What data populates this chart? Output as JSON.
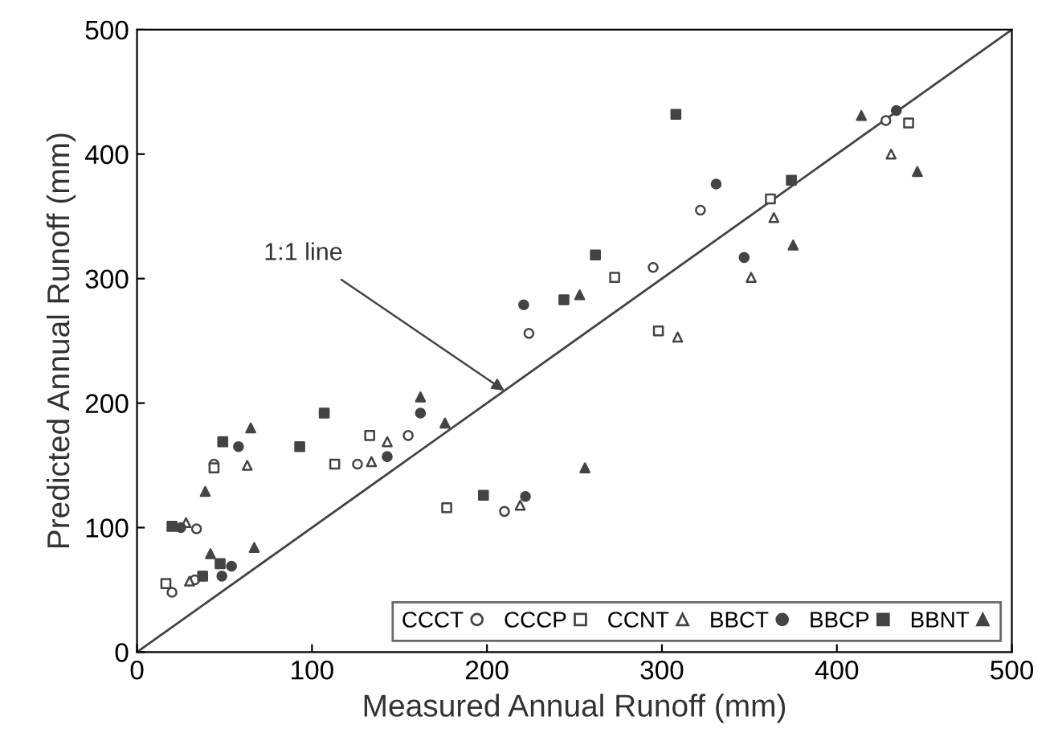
{
  "chart_data": {
    "type": "scatter",
    "xlabel": "Measured Annual Runoff (mm)",
    "ylabel": "Predicted Annual Runoff (mm)",
    "xlim": [
      0,
      500
    ],
    "ylim": [
      0,
      500
    ],
    "xticks": [
      0,
      100,
      200,
      300,
      400,
      500
    ],
    "yticks": [
      0,
      100,
      200,
      300,
      400,
      500
    ],
    "grid": false,
    "legend": "bottom right",
    "annotations": [
      {
        "text": "1:1 line",
        "x": 210,
        "y": 210
      }
    ],
    "series": [
      {
        "type": "line",
        "color": "#444444",
        "x": [
          0,
          500
        ],
        "values": [
          0,
          500
        ],
        "marker": "none",
        "line_style": "solid"
      },
      {
        "name": "CCCT",
        "color": "#ffffff",
        "marker": "circle",
        "x": [
          20,
          33,
          34,
          44,
          126,
          155,
          210,
          224,
          295,
          322,
          428
        ],
        "values": [
          48,
          58,
          99,
          151,
          151,
          174,
          113,
          256,
          309,
          355,
          427
        ]
      },
      {
        "name": "CCCP",
        "color": "#ffffff",
        "marker": "square",
        "x": [
          16.5,
          44,
          113,
          133,
          177,
          273,
          298,
          362,
          441
        ],
        "values": [
          55,
          148,
          151,
          174,
          116,
          301,
          258,
          364,
          425
        ]
      },
      {
        "name": "CCNT",
        "color": "#ffffff",
        "marker": "triangle",
        "x": [
          30,
          28,
          63,
          134,
          143,
          219,
          309,
          351,
          364,
          431
        ],
        "values": [
          57,
          104,
          150,
          153,
          169,
          118,
          253,
          301,
          349,
          400
        ]
      },
      {
        "name": "BBCT",
        "color": "#444444",
        "marker": "circle",
        "x": [
          48.5,
          54,
          25,
          58,
          143,
          162,
          222,
          221,
          331,
          347,
          434
        ],
        "values": [
          61,
          69,
          100,
          165,
          157,
          192,
          125,
          279,
          376,
          317,
          435
        ]
      },
      {
        "name": "BBCP",
        "color": "#444444",
        "marker": "square",
        "x": [
          37.5,
          47.5,
          20,
          49,
          93,
          107,
          198,
          244,
          262,
          308,
          374
        ],
        "values": [
          61,
          71,
          101,
          169,
          165,
          192,
          126,
          283,
          319,
          432,
          379
        ]
      },
      {
        "name": "BBNT",
        "color": "#444444",
        "marker": "triangle",
        "x": [
          42,
          67,
          39,
          65,
          162,
          176,
          256,
          253,
          375,
          414,
          446
        ],
        "values": [
          79,
          84,
          129,
          180,
          205,
          184,
          148,
          287,
          327,
          431,
          386
        ]
      }
    ]
  }
}
